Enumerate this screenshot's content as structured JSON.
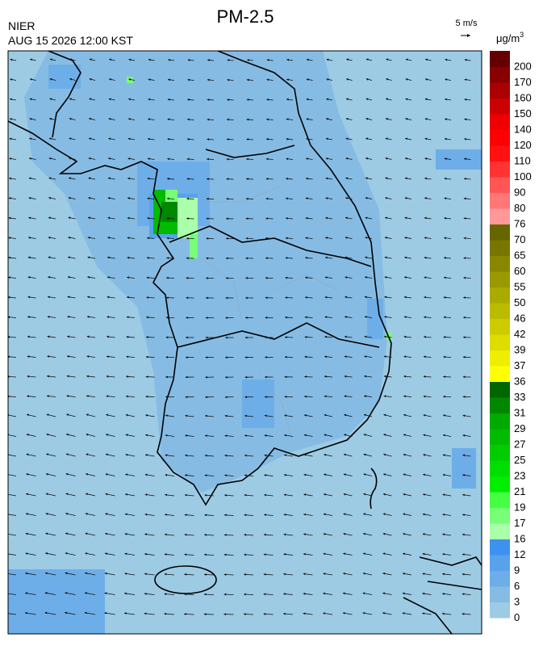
{
  "title": "PM-2.5",
  "agency": "NIER",
  "timestamp": "AUG 15 2026 12:00 KST",
  "wind_scale": "5 m/s",
  "unit": {
    "base": "μg/m",
    "sup": "3"
  },
  "legend": [
    {
      "value": 0,
      "color": "#9dcbe4"
    },
    {
      "value": 3,
      "color": "#86bce4"
    },
    {
      "value": 6,
      "color": "#6eaee8"
    },
    {
      "value": 9,
      "color": "#58a2ec"
    },
    {
      "value": 12,
      "color": "#3d92f0"
    },
    {
      "value": 16,
      "color": "#aaffaa"
    },
    {
      "value": 17,
      "color": "#77ff77"
    },
    {
      "value": 19,
      "color": "#44ff44"
    },
    {
      "value": 21,
      "color": "#00ee00"
    },
    {
      "value": 23,
      "color": "#00dd00"
    },
    {
      "value": 25,
      "color": "#00cc00"
    },
    {
      "value": 27,
      "color": "#00bb00"
    },
    {
      "value": 29,
      "color": "#00aa00"
    },
    {
      "value": 31,
      "color": "#008800"
    },
    {
      "value": 33,
      "color": "#006600"
    },
    {
      "value": 36,
      "color": "#ffff00"
    },
    {
      "value": 37,
      "color": "#eeee00"
    },
    {
      "value": 39,
      "color": "#dddd00"
    },
    {
      "value": 42,
      "color": "#cccc00"
    },
    {
      "value": 46,
      "color": "#bbbb00"
    },
    {
      "value": 50,
      "color": "#aaaa00"
    },
    {
      "value": 55,
      "color": "#999900"
    },
    {
      "value": 60,
      "color": "#888800"
    },
    {
      "value": 65,
      "color": "#777700"
    },
    {
      "value": 70,
      "color": "#666600"
    },
    {
      "value": 76,
      "color": "#ff9999"
    },
    {
      "value": 80,
      "color": "#ff7777"
    },
    {
      "value": 90,
      "color": "#ff5555"
    },
    {
      "value": 100,
      "color": "#ff3333"
    },
    {
      "value": 110,
      "color": "#ff1111"
    },
    {
      "value": 120,
      "color": "#ff0000"
    },
    {
      "value": 140,
      "color": "#ee0000"
    },
    {
      "value": 150,
      "color": "#cc0000"
    },
    {
      "value": 160,
      "color": "#aa0000"
    },
    {
      "value": 170,
      "color": "#880000"
    },
    {
      "value": 200,
      "color": "#660000"
    }
  ]
}
